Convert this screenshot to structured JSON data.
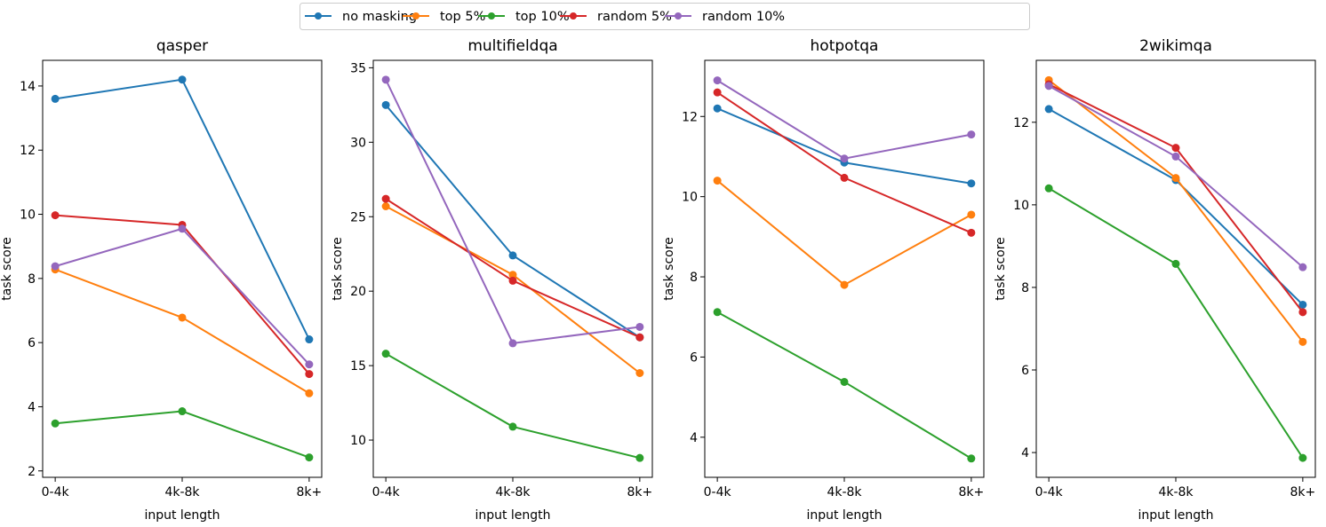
{
  "legend": {
    "placement": "top-center",
    "items": [
      "no masking",
      "top 5%",
      "top 10%",
      "random 5%",
      "random 10%"
    ]
  },
  "colors": {
    "no masking": "#1f77b4",
    "top 5%": "#ff7f0e",
    "top 10%": "#2ca02c",
    "random 5%": "#d62728",
    "random 10%": "#9467bd"
  },
  "chart_data": [
    {
      "type": "line",
      "title": "qasper",
      "xlabel": "input length",
      "ylabel": "task score",
      "categories": [
        "0-4k",
        "4k-8k",
        "8k+"
      ],
      "ylim": [
        1.8,
        14.8
      ],
      "yticks": [
        2,
        4,
        6,
        8,
        10,
        12,
        14
      ],
      "grid": false,
      "series": [
        {
          "name": "no masking",
          "values": [
            13.6,
            14.2,
            6.1
          ]
        },
        {
          "name": "top 5%",
          "values": [
            8.28,
            6.78,
            4.42
          ]
        },
        {
          "name": "top 10%",
          "values": [
            3.48,
            3.86,
            2.42
          ]
        },
        {
          "name": "random 5%",
          "values": [
            9.97,
            9.67,
            5.02
          ]
        },
        {
          "name": "random 10%",
          "values": [
            8.38,
            9.55,
            5.32
          ]
        }
      ]
    },
    {
      "type": "line",
      "title": "multifieldqa",
      "xlabel": "input length",
      "ylabel": "task score",
      "categories": [
        "0-4k",
        "4k-8k",
        "8k+"
      ],
      "ylim": [
        7.5,
        35.5
      ],
      "yticks": [
        10,
        15,
        20,
        25,
        30,
        35
      ],
      "grid": false,
      "series": [
        {
          "name": "no masking",
          "values": [
            32.5,
            22.4,
            16.9
          ]
        },
        {
          "name": "top 5%",
          "values": [
            25.7,
            21.1,
            14.5
          ]
        },
        {
          "name": "top 10%",
          "values": [
            15.8,
            10.9,
            8.8
          ]
        },
        {
          "name": "random 5%",
          "values": [
            26.2,
            20.7,
            16.9
          ]
        },
        {
          "name": "random 10%",
          "values": [
            34.2,
            16.5,
            17.6
          ]
        }
      ]
    },
    {
      "type": "line",
      "title": "hotpotqa",
      "xlabel": "input length",
      "ylabel": "task score",
      "categories": [
        "0-4k",
        "4k-8k",
        "8k+"
      ],
      "ylim": [
        3.0,
        13.4
      ],
      "yticks": [
        4,
        6,
        8,
        10,
        12
      ],
      "grid": false,
      "series": [
        {
          "name": "no masking",
          "values": [
            12.2,
            10.85,
            10.33
          ]
        },
        {
          "name": "top 5%",
          "values": [
            10.4,
            7.8,
            9.55
          ]
        },
        {
          "name": "top 10%",
          "values": [
            7.12,
            5.38,
            3.47
          ]
        },
        {
          "name": "random 5%",
          "values": [
            12.6,
            10.47,
            9.1
          ]
        },
        {
          "name": "random 10%",
          "values": [
            12.9,
            10.95,
            11.55
          ]
        }
      ]
    },
    {
      "type": "line",
      "title": "2wikimqa",
      "xlabel": "input length",
      "ylabel": "task score",
      "categories": [
        "0-4k",
        "4k-8k",
        "8k+"
      ],
      "ylim": [
        3.4,
        13.5
      ],
      "yticks": [
        4,
        6,
        8,
        10,
        12
      ],
      "grid": false,
      "series": [
        {
          "name": "no masking",
          "values": [
            12.32,
            10.6,
            7.58
          ]
        },
        {
          "name": "top 5%",
          "values": [
            13.02,
            10.65,
            6.68
          ]
        },
        {
          "name": "top 10%",
          "values": [
            10.4,
            8.57,
            3.87
          ]
        },
        {
          "name": "random 5%",
          "values": [
            12.92,
            11.38,
            7.4
          ]
        },
        {
          "name": "random 10%",
          "values": [
            12.88,
            11.17,
            8.49
          ]
        }
      ]
    }
  ]
}
